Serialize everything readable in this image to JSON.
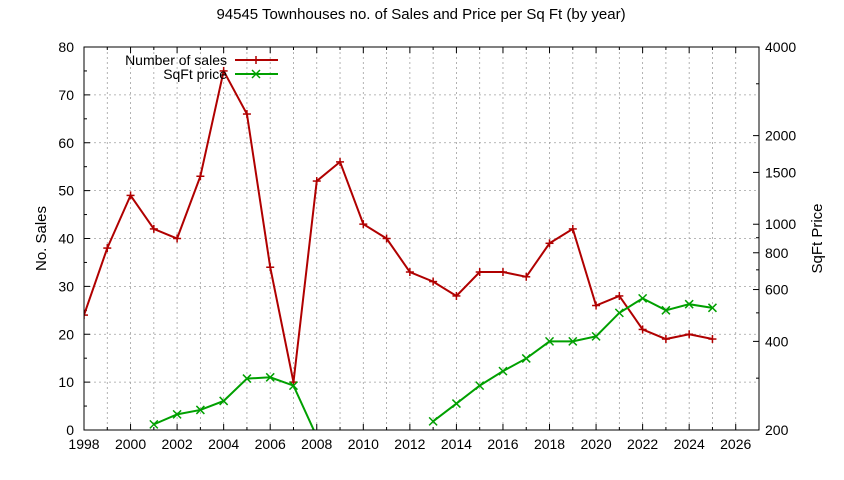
{
  "chart_data": {
    "type": "line",
    "title": "94545 Townhouses no. of Sales and Price per Sq Ft (by year)",
    "xlabel": "",
    "ylabel": "No. Sales",
    "y2label": "SqFt Price",
    "xlim": [
      1998,
      2027
    ],
    "ylim": [
      0,
      80
    ],
    "y2lim": [
      200,
      4000
    ],
    "y2scale": "log",
    "x_ticks": [
      "1998",
      "2000",
      "2002",
      "2004",
      "2006",
      "2008",
      "2010",
      "2012",
      "2014",
      "2016",
      "2018",
      "2020",
      "2022",
      "2024",
      "2026"
    ],
    "y_ticks": [
      "0",
      "10",
      "20",
      "30",
      "40",
      "50",
      "60",
      "70",
      "80"
    ],
    "y2_ticks": [
      "200",
      "400",
      "600",
      "800",
      "1000",
      "1500",
      "2000",
      "4000"
    ],
    "grid": true,
    "legend_position": "top-left",
    "series": [
      {
        "name": "Number of sales",
        "axis": "left",
        "color": "#b00000",
        "marker": "plus",
        "x": [
          1998,
          1999,
          2000,
          2001,
          2002,
          2003,
          2004,
          2005,
          2006,
          2007,
          2008,
          2009,
          2010,
          2011,
          2012,
          2013,
          2014,
          2015,
          2016,
          2017,
          2018,
          2019,
          2020,
          2021,
          2022,
          2023,
          2024,
          2025
        ],
        "y": [
          24,
          38,
          49,
          42,
          40,
          53,
          75,
          66,
          34,
          10,
          52,
          56,
          43,
          40,
          33,
          31,
          28,
          33,
          33,
          32,
          39,
          42,
          26,
          28,
          21,
          19,
          20,
          19
        ]
      },
      {
        "name": "SqFt price",
        "axis": "right",
        "color": "#00a000",
        "marker": "x",
        "x": [
          2001,
          2002,
          2003,
          2004,
          2005,
          2006,
          2007,
          2008,
          2013,
          2014,
          2015,
          2016,
          2017,
          2018,
          2019,
          2020,
          2021,
          2022,
          2023,
          2024,
          2025
        ],
        "y": [
          209,
          226,
          234,
          251,
          299,
          302,
          283,
          190,
          214,
          246,
          283,
          317,
          350,
          400,
          400,
          416,
          500,
          560,
          510,
          535,
          520
        ]
      }
    ]
  }
}
